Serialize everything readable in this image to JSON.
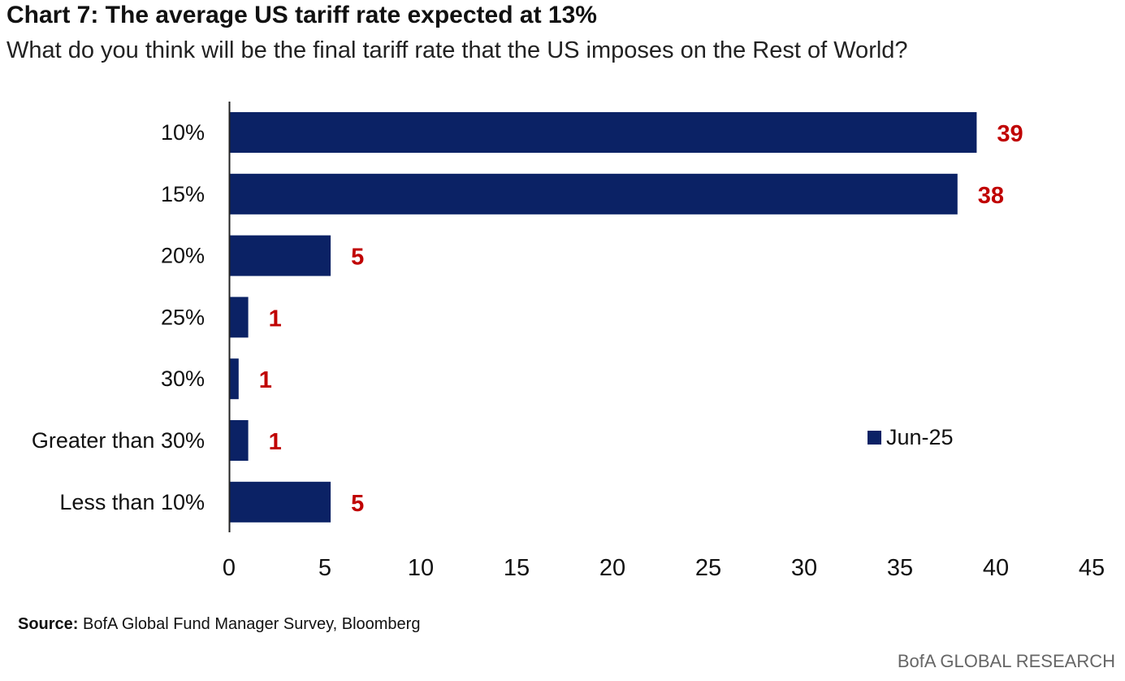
{
  "title": "Chart 7: The average US tariff rate expected at 13%",
  "subtitle": "What do you think will be the final tariff rate that the US imposes on the Rest of World?",
  "source_label": "Source:",
  "source_text": "BofA Global Fund Manager Survey, Bloomberg",
  "brand": "BofA GLOBAL RESEARCH",
  "colors": {
    "bar": "#0B2265",
    "data_label": "#C00000",
    "axis": "#222222"
  },
  "chart_data": {
    "type": "bar",
    "orientation": "horizontal",
    "categories": [
      "10%",
      "15%",
      "20%",
      "25%",
      "30%",
      "Greater than 30%",
      "Less than 10%"
    ],
    "series": [
      {
        "name": "Jun-25",
        "values": [
          39,
          38,
          5.3,
          1,
          0.5,
          1,
          5.3
        ]
      }
    ],
    "data_labels": [
      "39",
      "38",
      "5",
      "1",
      "1",
      "1",
      "5"
    ],
    "xlim": [
      0,
      45
    ],
    "xticks": [
      0,
      5,
      10,
      15,
      20,
      25,
      30,
      35,
      40,
      45
    ],
    "grid": false,
    "legend": "right-bottom"
  }
}
